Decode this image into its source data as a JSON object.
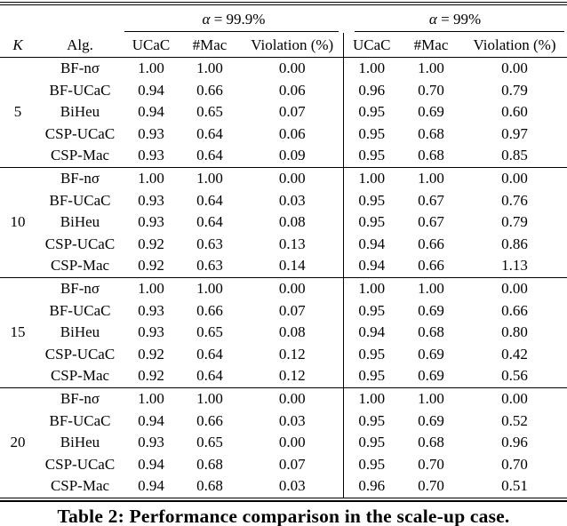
{
  "table": {
    "group_headers": [
      {
        "symbol": "α",
        "eq": " = 99.9%"
      },
      {
        "symbol": "α",
        "eq": " = 99%"
      }
    ],
    "columns": {
      "k": "K",
      "alg": "Alg.",
      "sub": [
        "UCaC",
        "#Mac",
        "Violation (%)",
        "UCaC",
        "#Mac",
        "Violation (%)"
      ]
    },
    "blocks": [
      {
        "k": "5",
        "rows": [
          {
            "alg": "BF-nσ",
            "values": [
              "1.00",
              "1.00",
              "0.00",
              "1.00",
              "1.00",
              "0.00"
            ]
          },
          {
            "alg": "BF-UCaC",
            "values": [
              "0.94",
              "0.66",
              "0.06",
              "0.96",
              "0.70",
              "0.79"
            ]
          },
          {
            "alg": "BiHeu",
            "values": [
              "0.94",
              "0.65",
              "0.07",
              "0.95",
              "0.69",
              "0.60"
            ]
          },
          {
            "alg": "CSP-UCaC",
            "values": [
              "0.93",
              "0.64",
              "0.06",
              "0.95",
              "0.68",
              "0.97"
            ]
          },
          {
            "alg": "CSP-Mac",
            "values": [
              "0.93",
              "0.64",
              "0.09",
              "0.95",
              "0.68",
              "0.85"
            ]
          }
        ]
      },
      {
        "k": "10",
        "rows": [
          {
            "alg": "BF-nσ",
            "values": [
              "1.00",
              "1.00",
              "0.00",
              "1.00",
              "1.00",
              "0.00"
            ]
          },
          {
            "alg": "BF-UCaC",
            "values": [
              "0.93",
              "0.64",
              "0.03",
              "0.95",
              "0.67",
              "0.76"
            ]
          },
          {
            "alg": "BiHeu",
            "values": [
              "0.93",
              "0.64",
              "0.08",
              "0.95",
              "0.67",
              "0.79"
            ]
          },
          {
            "alg": "CSP-UCaC",
            "values": [
              "0.92",
              "0.63",
              "0.13",
              "0.94",
              "0.66",
              "0.86"
            ]
          },
          {
            "alg": "CSP-Mac",
            "values": [
              "0.92",
              "0.63",
              "0.14",
              "0.94",
              "0.66",
              "1.13"
            ]
          }
        ]
      },
      {
        "k": "15",
        "rows": [
          {
            "alg": "BF-nσ",
            "values": [
              "1.00",
              "1.00",
              "0.00",
              "1.00",
              "1.00",
              "0.00"
            ]
          },
          {
            "alg": "BF-UCaC",
            "values": [
              "0.93",
              "0.66",
              "0.07",
              "0.95",
              "0.69",
              "0.66"
            ]
          },
          {
            "alg": "BiHeu",
            "values": [
              "0.93",
              "0.65",
              "0.08",
              "0.94",
              "0.68",
              "0.80"
            ]
          },
          {
            "alg": "CSP-UCaC",
            "values": [
              "0.92",
              "0.64",
              "0.12",
              "0.95",
              "0.69",
              "0.42"
            ]
          },
          {
            "alg": "CSP-Mac",
            "values": [
              "0.92",
              "0.64",
              "0.12",
              "0.95",
              "0.69",
              "0.56"
            ]
          }
        ]
      },
      {
        "k": "20",
        "rows": [
          {
            "alg": "BF-nσ",
            "values": [
              "1.00",
              "1.00",
              "0.00",
              "1.00",
              "1.00",
              "0.00"
            ]
          },
          {
            "alg": "BF-UCaC",
            "values": [
              "0.94",
              "0.66",
              "0.03",
              "0.95",
              "0.69",
              "0.52"
            ]
          },
          {
            "alg": "BiHeu",
            "values": [
              "0.93",
              "0.65",
              "0.00",
              "0.95",
              "0.68",
              "0.96"
            ]
          },
          {
            "alg": "CSP-UCaC",
            "values": [
              "0.94",
              "0.68",
              "0.07",
              "0.95",
              "0.70",
              "0.70"
            ]
          },
          {
            "alg": "CSP-Mac",
            "values": [
              "0.94",
              "0.68",
              "0.03",
              "0.96",
              "0.70",
              "0.51"
            ]
          }
        ]
      }
    ]
  },
  "caption": "Table 2: Performance comparison in the scale-up case."
}
